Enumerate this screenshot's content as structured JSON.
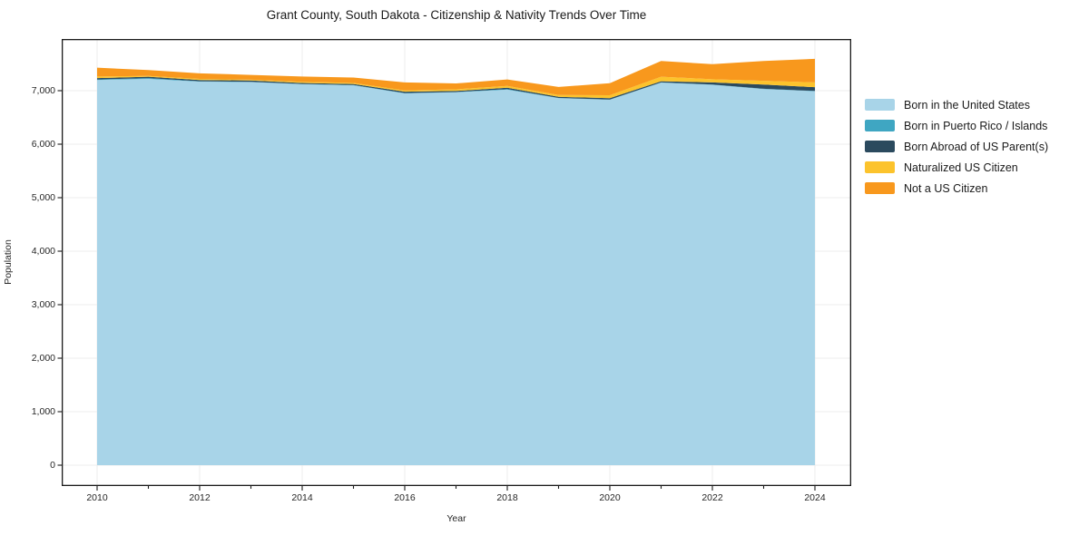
{
  "title": "Grant County, South Dakota - Citizenship & Nativity Trends Over Time",
  "axes": {
    "xlabel": "Year",
    "ylabel": "Population"
  },
  "chart_data": {
    "type": "area",
    "stacked": true,
    "title": "Grant County, South Dakota - Citizenship & Nativity Trends Over Time",
    "xlabel": "Year",
    "ylabel": "Population",
    "x": [
      2010,
      2011,
      2012,
      2013,
      2014,
      2015,
      2016,
      2017,
      2018,
      2019,
      2020,
      2021,
      2022,
      2023,
      2024
    ],
    "series": [
      {
        "name": "Born in the United States",
        "color": "#a8d4e8",
        "values": [
          7200,
          7220,
          7170,
          7160,
          7120,
          7100,
          6950,
          6970,
          7020,
          6860,
          6830,
          7150,
          7110,
          7030,
          6990
        ]
      },
      {
        "name": "Born in Puerto Rico / Islands",
        "color": "#3fa6c2",
        "values": [
          10,
          15,
          5,
          5,
          5,
          5,
          5,
          5,
          10,
          5,
          5,
          5,
          5,
          5,
          5
        ]
      },
      {
        "name": "Born Abroad of US Parent(s)",
        "color": "#2b4a5e",
        "values": [
          25,
          25,
          25,
          25,
          20,
          20,
          25,
          20,
          25,
          20,
          25,
          20,
          40,
          80,
          70
        ]
      },
      {
        "name": "Naturalized US Citizen",
        "color": "#fcc32c",
        "values": [
          30,
          15,
          20,
          15,
          20,
          20,
          25,
          30,
          35,
          35,
          55,
          85,
          60,
          70,
          90
        ]
      },
      {
        "name": "Not a US Citizen",
        "color": "#f8981d",
        "values": [
          165,
          110,
          105,
          90,
          100,
          100,
          150,
          110,
          120,
          150,
          225,
          295,
          280,
          370,
          440
        ]
      }
    ],
    "xticks": [
      2010,
      2012,
      2014,
      2016,
      2018,
      2020,
      2022,
      2024
    ],
    "xtick_labels": [
      "2010",
      "2012",
      "2014",
      "2016",
      "2018",
      "2020",
      "2022",
      "2024"
    ],
    "yticks": [
      0,
      1000,
      2000,
      3000,
      4000,
      5000,
      6000,
      7000
    ],
    "ytick_labels": [
      "0",
      "1,000",
      "2,000",
      "3,000",
      "4,000",
      "5,000",
      "6,000",
      "7,000"
    ],
    "xlim": [
      2009.31,
      2024.71
    ],
    "ylim": [
      -390,
      7966
    ],
    "grid": true,
    "legend_position": "right of plot",
    "colors": {
      "grid": "#ececec",
      "spine": "#1a1a1a",
      "background": "#ffffff",
      "text": "#262626"
    }
  }
}
